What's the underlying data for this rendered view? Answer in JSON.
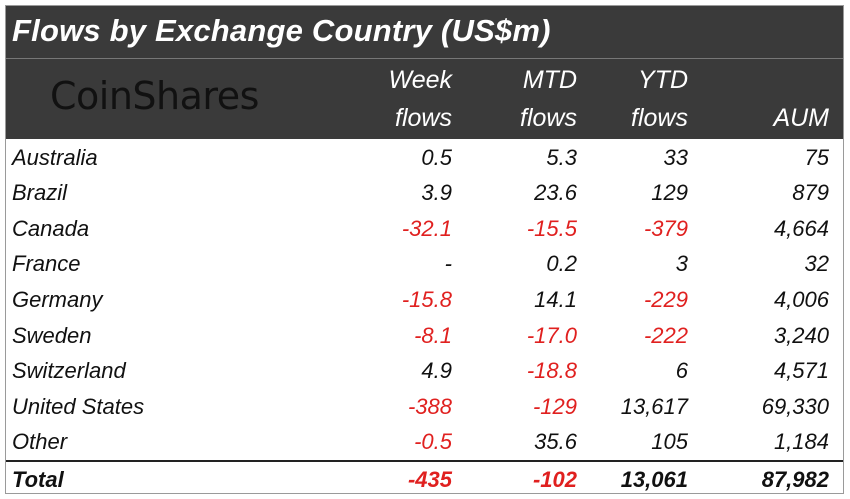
{
  "title": "Flows by Exchange Country (US$m)",
  "logo": "CoinShares",
  "columns": [
    {
      "line1": "Week",
      "line2": "flows"
    },
    {
      "line1": "MTD",
      "line2": "flows"
    },
    {
      "line1": "YTD",
      "line2": "flows"
    },
    {
      "line1": "",
      "line2": "AUM"
    }
  ],
  "chart_data": {
    "type": "table",
    "title": "Flows by Exchange Country (US$m)",
    "headers": [
      "",
      "Week flows",
      "MTD flows",
      "YTD flows",
      "AUM"
    ],
    "rows": [
      {
        "country": "Australia",
        "week": "0.5",
        "mtd": "5.3",
        "ytd": "33",
        "aum": "75"
      },
      {
        "country": "Brazil",
        "week": "3.9",
        "mtd": "23.6",
        "ytd": "129",
        "aum": "879"
      },
      {
        "country": "Canada",
        "week": "-32.1",
        "mtd": "-15.5",
        "ytd": "-379",
        "aum": "4,664"
      },
      {
        "country": "France",
        "week": "-",
        "mtd": "0.2",
        "ytd": "3",
        "aum": "32"
      },
      {
        "country": "Germany",
        "week": "-15.8",
        "mtd": "14.1",
        "ytd": "-229",
        "aum": "4,006"
      },
      {
        "country": "Sweden",
        "week": "-8.1",
        "mtd": "-17.0",
        "ytd": "-222",
        "aum": "3,240"
      },
      {
        "country": "Switzerland",
        "week": "4.9",
        "mtd": "-18.8",
        "ytd": "6",
        "aum": "4,571"
      },
      {
        "country": "United States",
        "week": "-388",
        "mtd": "-129",
        "ytd": "13,617",
        "aum": "69,330"
      },
      {
        "country": "Other",
        "week": "-0.5",
        "mtd": "35.6",
        "ytd": "105",
        "aum": "1,184"
      }
    ],
    "total": {
      "country": "Total",
      "week": "-435",
      "mtd": "-102",
      "ytd": "13,061",
      "aum": "87,982"
    }
  },
  "colors": {
    "header_bg": "#3a3a3a",
    "negative": "#e0201f",
    "text": "#111111",
    "header_text": "#ffffff"
  }
}
